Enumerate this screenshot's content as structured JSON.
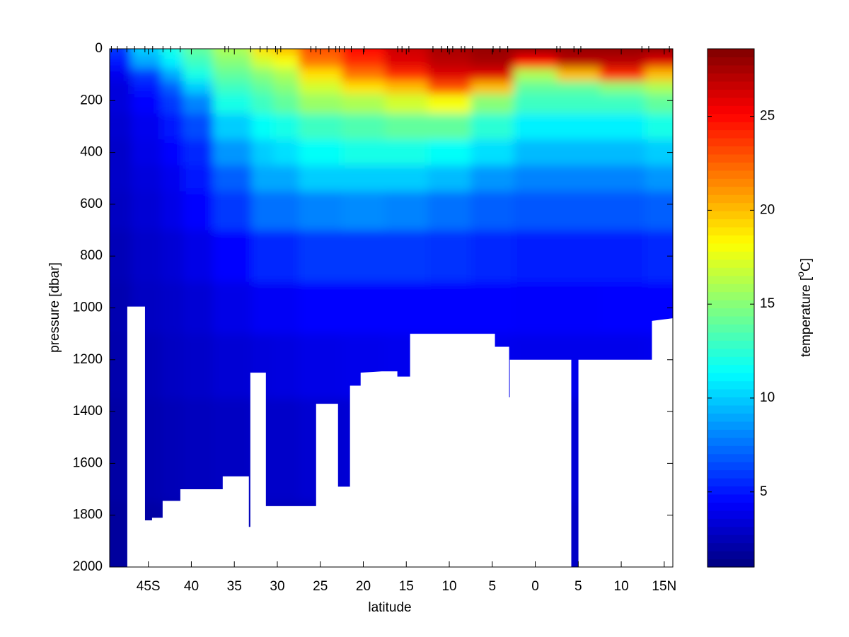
{
  "chart_data": {
    "type": "contour",
    "xlabel": "latitude",
    "ylabel": "pressure [dbar]",
    "colorbar_label": [
      "temperature [",
      "o",
      "C]"
    ],
    "xlim": [
      -49.5,
      16
    ],
    "xticks": [
      {
        "value": -45,
        "label": "45S"
      },
      {
        "value": -40,
        "label": "40"
      },
      {
        "value": -35,
        "label": "35"
      },
      {
        "value": -30,
        "label": "30"
      },
      {
        "value": -25,
        "label": "25"
      },
      {
        "value": -20,
        "label": "20"
      },
      {
        "value": -15,
        "label": "15"
      },
      {
        "value": -10,
        "label": "10"
      },
      {
        "value": -5,
        "label": "5"
      },
      0,
      5,
      10,
      {
        "value": 15,
        "label": "15N"
      }
    ],
    "ylim": [
      0,
      2000
    ],
    "yticks": [
      0,
      200,
      400,
      600,
      800,
      1000,
      1200,
      1400,
      1600,
      1800,
      2000
    ],
    "y_reversed": true,
    "colormap": "jet",
    "clim": [
      1,
      28.6
    ],
    "cticks": [
      5,
      10,
      15,
      20,
      25
    ],
    "field": {
      "x": [
        -49,
        -45,
        -42,
        -40,
        -35,
        -31,
        -30,
        -25,
        -20,
        -15,
        -10,
        -5,
        0,
        5,
        10,
        15.5
      ],
      "depth": [
        0,
        50,
        100,
        150,
        200,
        300,
        400,
        500,
        600,
        800,
        1000,
        1200,
        1500,
        2000
      ],
      "values": [
        [
          6,
          10,
          12,
          14,
          16,
          19,
          20,
          23,
          25,
          26.5,
          27.5,
          28,
          28,
          28,
          28,
          28
        ],
        [
          5,
          9,
          11,
          13,
          15,
          17,
          18,
          22,
          24,
          26,
          27,
          27.5,
          25,
          27,
          27,
          26
        ],
        [
          4,
          6,
          9,
          12,
          14,
          15,
          16,
          19,
          22,
          24,
          26,
          26,
          16,
          20,
          24,
          20
        ],
        [
          3.5,
          5,
          7,
          10,
          13,
          14,
          15,
          17,
          19,
          20,
          23,
          20,
          14,
          14,
          15,
          16
        ],
        [
          3.5,
          4.5,
          6,
          8,
          12,
          13,
          14,
          15.5,
          16,
          17,
          18,
          15,
          13,
          13,
          13,
          14
        ],
        [
          3.2,
          4,
          5,
          6.5,
          10,
          11.5,
          12,
          13,
          13.5,
          14,
          14,
          12.5,
          11,
          11,
          11,
          12
        ],
        [
          3,
          3.8,
          4.5,
          5.5,
          8.5,
          10,
          10.5,
          11.5,
          12,
          12,
          11.5,
          10.5,
          9.5,
          9.5,
          9.5,
          10
        ],
        [
          3,
          3.5,
          4,
          5,
          7,
          9,
          9,
          10,
          10,
          10,
          9.5,
          8.5,
          8,
          8,
          8,
          8.5
        ],
        [
          2.8,
          3.3,
          3.8,
          4.5,
          6,
          7.5,
          7.5,
          8,
          8.2,
          8,
          7.5,
          7,
          6.8,
          6.8,
          6.8,
          7
        ],
        [
          2.5,
          3,
          3.3,
          3.8,
          4.5,
          5.5,
          5.5,
          6,
          6,
          6,
          5.8,
          5.5,
          5.3,
          5.2,
          5.3,
          5.5
        ],
        [
          2.3,
          2.8,
          3,
          3.3,
          3.8,
          4.2,
          4.2,
          4.5,
          4.6,
          4.6,
          4.6,
          4.5,
          4.4,
          4.4,
          4.5,
          4.6
        ],
        [
          2.2,
          2.5,
          2.8,
          3,
          3.3,
          3.5,
          3.6,
          3.8,
          3.9,
          4,
          4,
          4,
          3.9,
          3.9,
          3.9,
          4
        ],
        [
          2,
          2.3,
          2.5,
          2.7,
          2.8,
          3,
          3,
          3.2,
          3.3,
          3.4,
          3.4,
          3.4,
          3.3,
          3.3,
          3.3,
          3.4
        ],
        [
          1.8,
          2,
          2.2,
          2.4,
          2.5,
          2.6,
          2.6,
          2.7,
          2.8,
          2.9,
          2.9,
          2.9,
          2.9,
          2.9,
          2.9,
          2.9
        ]
      ]
    },
    "seafloor": {
      "x": [
        -47.45,
        -47.45,
        -45.39,
        -45.39,
        -44.57,
        -44.57,
        -43.34,
        -43.34,
        -41.28,
        -41.28,
        -36.35,
        -36.35,
        -33.31,
        -33.31,
        -33.14,
        -33.14,
        -31.33,
        -31.33,
        -25.49,
        -25.49,
        -22.94,
        -22.94,
        -21.55,
        -21.55,
        -20.31,
        -20.31,
        -17.85,
        -16.04,
        -16.04,
        -14.56,
        -14.56,
        -4.69,
        -4.69,
        -3.04,
        -3.04,
        -2.96,
        -2.96,
        4.19,
        4.19,
        5.02,
        5.02,
        13.57,
        13.57,
        16
      ],
      "depth": [
        2000,
        995,
        995,
        1820,
        1820,
        1810,
        1810,
        1745,
        1745,
        1700,
        1700,
        1650,
        1650,
        1845,
        1845,
        1250,
        1250,
        1765,
        1765,
        1370,
        1370,
        1690,
        1690,
        1300,
        1300,
        1250,
        1245,
        1245,
        1265,
        1265,
        1100,
        1100,
        1150,
        1150,
        1345,
        1345,
        1200,
        1200,
        2000,
        2000,
        1200,
        1200,
        1050,
        1040
      ]
    },
    "stations": [
      -49.3,
      -48.6,
      -47.5,
      -46.6,
      -45.4,
      -44.5,
      -43.3,
      -42.4,
      -41.3,
      -36.1,
      -35.7,
      -33.1,
      -32.0,
      -31.2,
      -30.2,
      -29.6,
      -26.1,
      -25.5,
      -24.0,
      -23.2,
      -22.8,
      -22.2,
      -21.4,
      -19.9,
      -16.0,
      -15.5,
      -14.7,
      -11.9,
      -10.9,
      -10.2,
      -9.6,
      -8.6,
      -8.2,
      -7.3,
      -4.9,
      -4.1,
      -3.2,
      2.5,
      2.9,
      4.5,
      5.3,
      12.4,
      13.2,
      15.6
    ]
  }
}
